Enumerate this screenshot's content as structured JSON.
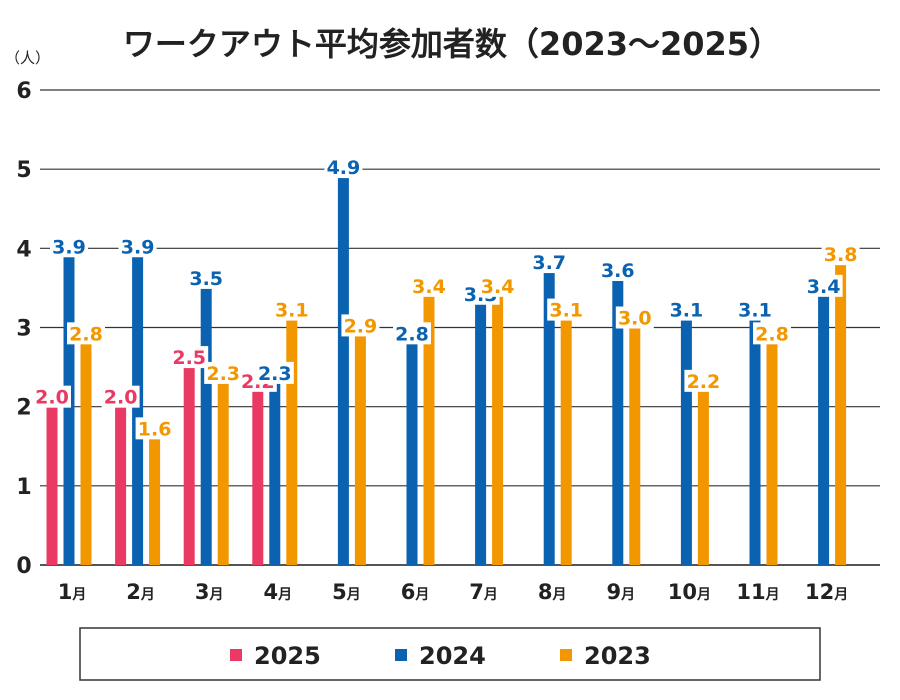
{
  "chart_data": {
    "type": "bar",
    "title": "ワークアウト平均参加者数（2023〜2025）",
    "unit": "（人）",
    "categories": [
      "1月",
      "2月",
      "3月",
      "4月",
      "5月",
      "6月",
      "7月",
      "8月",
      "9月",
      "10月",
      "11月",
      "12月"
    ],
    "series": [
      {
        "name": "2025",
        "color": "#e83a62",
        "values": [
          2.0,
          2.0,
          2.5,
          2.2,
          null,
          null,
          null,
          null,
          null,
          null,
          null,
          null
        ]
      },
      {
        "name": "2024",
        "color": "#0a62b0",
        "values": [
          3.9,
          3.9,
          3.5,
          2.3,
          4.9,
          2.8,
          3.3,
          3.7,
          3.6,
          3.1,
          3.1,
          3.4
        ]
      },
      {
        "name": "2023",
        "color": "#f39700",
        "values": [
          2.8,
          1.6,
          2.3,
          3.1,
          2.9,
          3.4,
          3.4,
          3.1,
          3.0,
          2.2,
          2.8,
          3.8
        ]
      }
    ],
    "yticks": [
      0,
      1,
      2,
      3,
      4,
      5,
      6
    ],
    "ylim": [
      0,
      6
    ],
    "grid": true,
    "legend": "bottom"
  }
}
